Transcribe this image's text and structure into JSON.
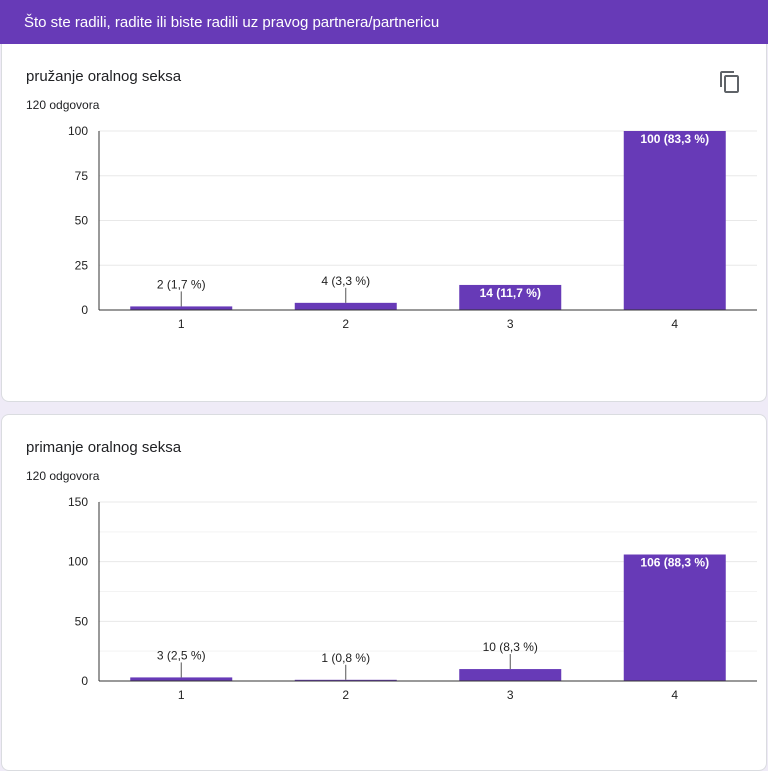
{
  "header": {
    "title": "Što ste radili, radite ili biste radili uz pravog partnera/partnericu"
  },
  "questions": [
    {
      "title": "pružanje oralnog seksa",
      "responses": "120 odgovora",
      "copy_icon": "copy-icon"
    },
    {
      "title": "primanje oralnog seksa",
      "responses": "120 odgovora"
    }
  ],
  "colors": {
    "accent": "#673ab7",
    "bar": "#673ab7",
    "background": "#efebf7"
  },
  "chart_data": [
    {
      "type": "bar",
      "categories": [
        "1",
        "2",
        "3",
        "4"
      ],
      "values": [
        2,
        4,
        14,
        100
      ],
      "labels": [
        "2 (1,7 %)",
        "4 (3,3 %)",
        "14 (11,7 %)",
        "100 (83,3 %)"
      ],
      "yticks": [
        0,
        25,
        50,
        75,
        100
      ],
      "ylim": [
        0,
        100
      ],
      "grid": true
    },
    {
      "type": "bar",
      "categories": [
        "1",
        "2",
        "3",
        "4"
      ],
      "values": [
        3,
        1,
        10,
        106
      ],
      "labels": [
        "3 (2,5 %)",
        "1 (0,8 %)",
        "10 (8,3 %)",
        "106 (88,3 %)"
      ],
      "yticks": [
        0,
        50,
        100,
        150
      ],
      "ylim": [
        0,
        150
      ],
      "grid": true
    }
  ]
}
